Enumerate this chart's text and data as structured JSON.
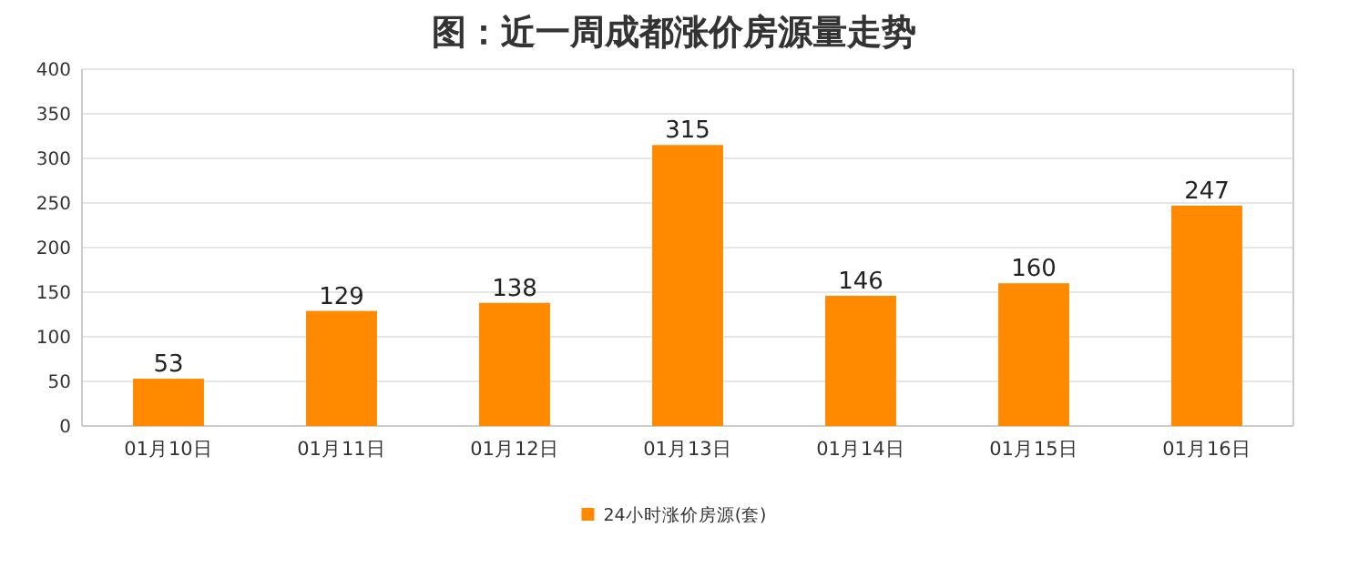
{
  "chart_data": {
    "type": "bar",
    "title": "图：近一周成都涨价房源量走势",
    "categories": [
      "01月10日",
      "01月11日",
      "01月12日",
      "01月13日",
      "01月14日",
      "01月15日",
      "01月16日"
    ],
    "series": [
      {
        "name": "24小时涨价房源(套)",
        "color": "#ff8a00",
        "values": [
          53,
          129,
          138,
          315,
          146,
          160,
          247
        ]
      }
    ],
    "ylim": [
      0,
      400
    ],
    "yticks": [
      0,
      50,
      100,
      150,
      200,
      250,
      300,
      350,
      400
    ],
    "grid": "y",
    "legend": "bottom",
    "data_labels": true
  }
}
